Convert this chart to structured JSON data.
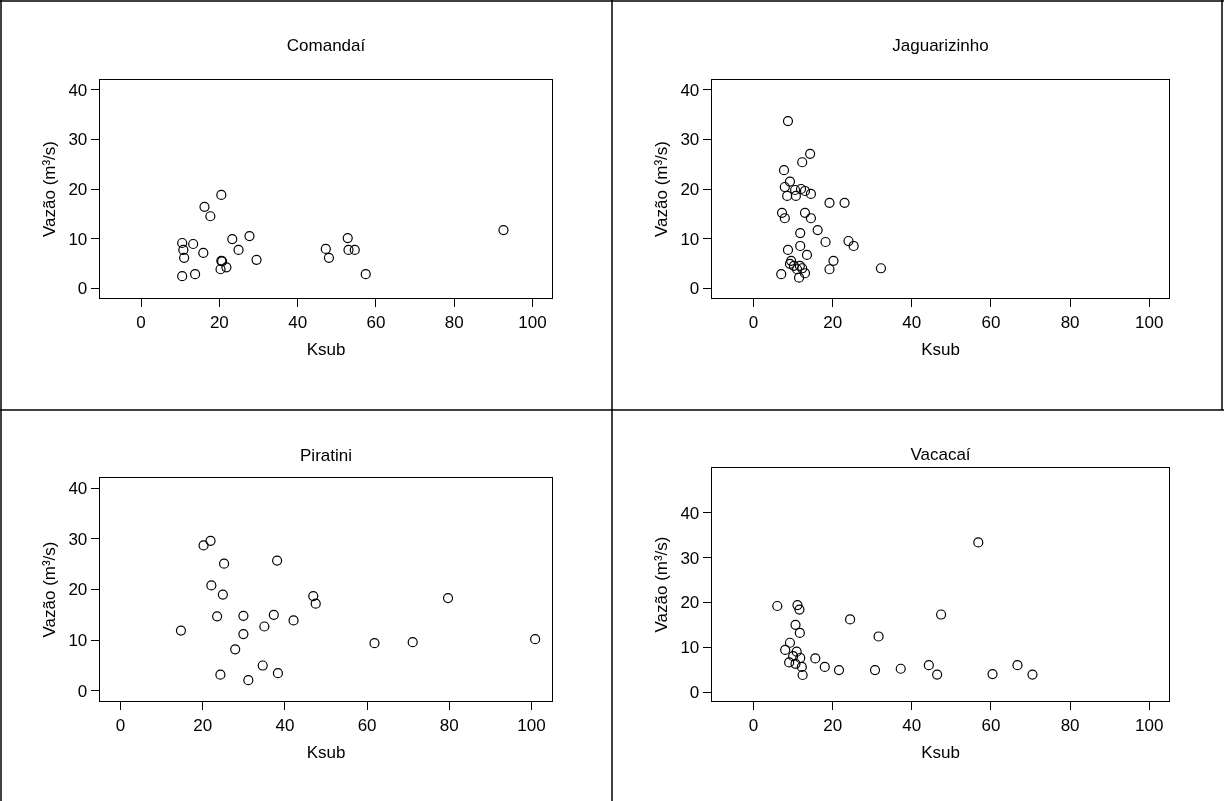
{
  "chart_data": [
    {
      "type": "scatter",
      "title": "Comandaí",
      "xlabel": "Ksub",
      "ylabel": "Vazão (m³/s)",
      "marker": "circle",
      "grid": false,
      "xlim": [
        -10.5,
        105
      ],
      "xticks": [
        0,
        20,
        40,
        60,
        80,
        100
      ],
      "ylim": [
        -2,
        42
      ],
      "yticks": [
        0,
        10,
        20,
        30,
        40
      ],
      "series": [
        {
          "color": "#000000",
          "x": [
            10.5,
            10.8,
            11,
            10.5,
            13.3,
            13.8,
            15.9,
            16.2,
            17.7,
            20.5,
            20.3,
            20.5,
            20.7,
            21.8,
            23.3,
            24.9,
            27.7,
            29.5,
            47.2,
            48,
            52.8,
            53,
            54.6,
            57.4,
            92.6
          ],
          "values": [
            9.1,
            7.7,
            6.1,
            2.4,
            8.9,
            2.8,
            7.1,
            16.4,
            14.5,
            18.8,
            3.8,
            5.5,
            5.4,
            4.2,
            9.9,
            7.7,
            10.5,
            5.7,
            7.9,
            6.1,
            10.1,
            7.7,
            7.7,
            2.8,
            11.7
          ]
        }
      ]
    },
    {
      "type": "scatter",
      "title": "Jaguarizinho",
      "xlabel": "Ksub",
      "ylabel": "Vazão (m³/s)",
      "marker": "circle",
      "grid": false,
      "xlim": [
        -10.5,
        105
      ],
      "xticks": [
        0,
        20,
        40,
        60,
        80,
        100
      ],
      "ylim": [
        -2,
        42
      ],
      "yticks": [
        0,
        10,
        20,
        30,
        40
      ],
      "series": [
        {
          "color": "#000000",
          "x": [
            8.7,
            14.3,
            12.3,
            7.7,
            9.2,
            7.9,
            10.5,
            12,
            13,
            8.5,
            10.7,
            14.5,
            19.2,
            23,
            7.2,
            7.9,
            13,
            14.5,
            16.2,
            11.8,
            18.2,
            24,
            25.3,
            8.7,
            11.8,
            13.5,
            9.5,
            10.2,
            11.7,
            12.3,
            13,
            9.2,
            11,
            20.2,
            19.2,
            7,
            11.5,
            32.2
          ],
          "values": [
            33.7,
            27.1,
            25.4,
            23.8,
            21.5,
            20.4,
            19.8,
            20,
            19.6,
            18.6,
            18.6,
            19,
            17.2,
            17.2,
            15.2,
            14.1,
            15.2,
            14.1,
            11.7,
            11.1,
            9.3,
            9.5,
            8.5,
            7.7,
            8.5,
            6.7,
            5.5,
            4.5,
            4.5,
            4,
            3,
            4.9,
            3.8,
            5.5,
            3.8,
            2.8,
            2.1,
            4
          ]
        }
      ]
    },
    {
      "type": "scatter",
      "title": "Piratini",
      "xlabel": "Ksub",
      "ylabel": "Vazão (m³/s)",
      "marker": "circle",
      "grid": false,
      "xlim": [
        -5,
        105
      ],
      "xticks": [
        0,
        20,
        40,
        60,
        80,
        100
      ],
      "ylim": [
        -2,
        42
      ],
      "yticks": [
        0,
        10,
        20,
        30,
        40
      ],
      "series": [
        {
          "color": "#000000",
          "x": [
            14.7,
            20.2,
            21.9,
            25.2,
            22.1,
            24.9,
            23.5,
            24.3,
            29.9,
            29.9,
            27.9,
            31.1,
            34.6,
            38.3,
            35,
            37.3,
            38.1,
            42.1,
            46.9,
            47.5,
            61.8,
            71.1,
            79.7,
            100.9
          ],
          "values": [
            11.9,
            28.7,
            29.6,
            25.1,
            20.8,
            19,
            14.7,
            3.2,
            14.8,
            11.2,
            8.2,
            2.1,
            5,
            3.5,
            12.7,
            15,
            25.7,
            13.9,
            18.7,
            17.2,
            9.4,
            9.6,
            18.3,
            10.2
          ]
        }
      ]
    },
    {
      "type": "scatter",
      "title": "Vacacaí",
      "xlabel": "Ksub",
      "ylabel": "Vazão (m³/s)",
      "marker": "circle",
      "grid": false,
      "xlim": [
        -10.5,
        105
      ],
      "xticks": [
        0,
        20,
        40,
        60,
        80,
        100
      ],
      "ylim": [
        -2,
        50
      ],
      "yticks": [
        0,
        10,
        20,
        30,
        40
      ],
      "series": [
        {
          "color": "#000000",
          "x": [
            6,
            11.1,
            11.6,
            10.6,
            11.7,
            9.2,
            8,
            10.9,
            10,
            11.8,
            9,
            10.6,
            12.2,
            12.4,
            15.6,
            18,
            21.6,
            24.4,
            30.7,
            31.6,
            37.2,
            44.3,
            46.4,
            47.4,
            56.8,
            60.4,
            66.7,
            70.5
          ],
          "values": [
            19.2,
            19.4,
            18.4,
            15,
            13.2,
            11,
            9.4,
            9,
            8,
            7.6,
            6.6,
            6.3,
            5.6,
            3.8,
            7.5,
            5.6,
            4.9,
            16.2,
            4.9,
            12.4,
            5.2,
            6,
            3.9,
            17.3,
            33.4,
            4,
            6,
            3.9
          ]
        }
      ]
    }
  ]
}
